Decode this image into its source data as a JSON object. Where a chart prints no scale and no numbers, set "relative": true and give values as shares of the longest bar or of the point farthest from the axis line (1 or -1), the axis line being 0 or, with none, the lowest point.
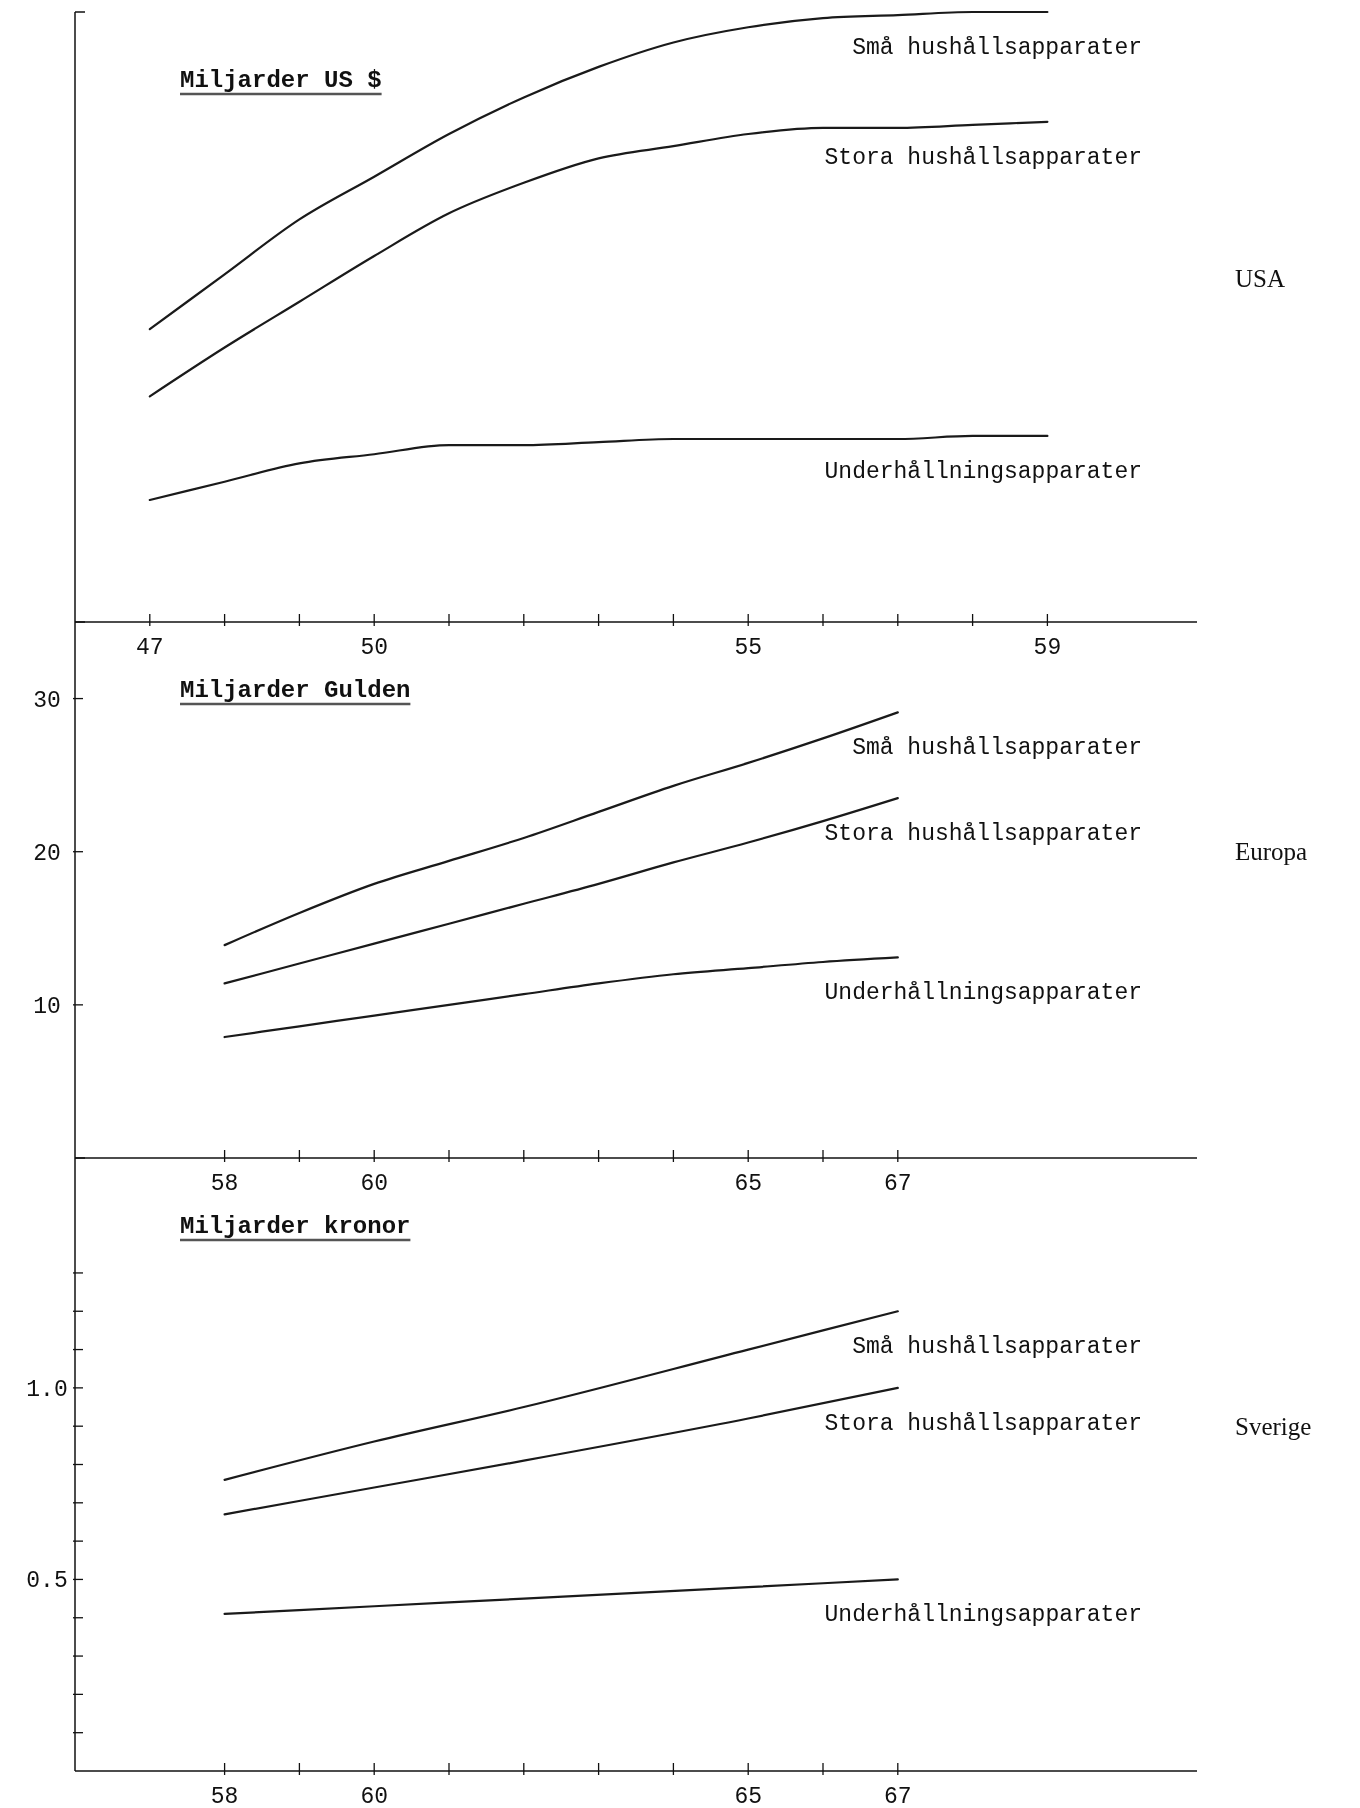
{
  "chart_data": [
    {
      "type": "line",
      "annotations": [
        "USA"
      ],
      "ylabel": "Miljarder US $",
      "relative": true,
      "x": [
        47,
        48,
        49,
        50,
        51,
        52,
        53,
        54,
        55,
        56,
        57,
        58,
        59
      ],
      "xlim": [
        46,
        61
      ],
      "xticks": [
        47,
        {
          "value": 48,
          "label": null
        },
        {
          "value": 49,
          "label": null
        },
        50,
        {
          "value": 51,
          "label": null
        },
        {
          "value": 52,
          "label": null
        },
        {
          "value": 53,
          "label": null
        },
        {
          "value": 54,
          "label": null
        },
        55,
        {
          "value": 56,
          "label": null
        },
        {
          "value": 57,
          "label": null
        },
        {
          "value": 58,
          "label": null
        },
        59
      ],
      "series": [
        {
          "name": "Små hushållsapparater",
          "color": "#1a1a1a",
          "values": [
            0.48,
            0.57,
            0.66,
            0.73,
            0.8,
            0.86,
            0.91,
            0.95,
            0.975,
            0.99,
            0.995,
            1,
            1
          ]
        },
        {
          "name": "Stora hushållsapparater",
          "color": "#1a1a1a",
          "values": [
            0.37,
            0.45,
            0.525,
            0.6,
            0.67,
            0.72,
            0.76,
            0.78,
            0.8,
            0.81,
            0.81,
            0.815,
            0.82
          ]
        },
        {
          "name": "Underhållningsapparater",
          "color": "#1a1a1a",
          "values": [
            0.2,
            0.23,
            0.26,
            0.275,
            0.29,
            0.29,
            0.295,
            0.3,
            0.3,
            0.3,
            0.3,
            0.305,
            0.305
          ]
        }
      ]
    },
    {
      "type": "line",
      "annotations": [
        "Europa"
      ],
      "ylabel": "Miljarder Gulden",
      "x": [
        58,
        59,
        60,
        61,
        62,
        63,
        64,
        65,
        66,
        67
      ],
      "xlim": [
        56,
        71
      ],
      "xticks": [
        58,
        {
          "value": 59,
          "label": null
        },
        60,
        {
          "value": 61,
          "label": null
        },
        {
          "value": 62,
          "label": null
        },
        {
          "value": 63,
          "label": null
        },
        {
          "value": 64,
          "label": null
        },
        65,
        {
          "value": 66,
          "label": null
        },
        67
      ],
      "ylim": [
        0,
        35
      ],
      "yticks": [
        10,
        20,
        30
      ],
      "series": [
        {
          "name": "Små hushållsapparater",
          "color": "#1a1a1a",
          "values": [
            13.9,
            16.0,
            17.9,
            19.4,
            20.9,
            22.6,
            24.3,
            25.8,
            27.4,
            29.1
          ]
        },
        {
          "name": "Stora hushållsapparater",
          "color": "#1a1a1a",
          "values": [
            11.4,
            12.7,
            14.0,
            15.3,
            16.6,
            17.9,
            19.3,
            20.6,
            22.0,
            23.5
          ]
        },
        {
          "name": "Underhållningsapparater",
          "color": "#1a1a1a",
          "values": [
            7.9,
            8.6,
            9.3,
            10.0,
            10.7,
            11.4,
            12.0,
            12.4,
            12.8,
            13.1
          ]
        }
      ]
    },
    {
      "type": "line",
      "annotations": [
        "Sverige"
      ],
      "ylabel": "Miljarder kronor",
      "x": [
        58,
        60,
        62,
        65,
        67
      ],
      "xlim": [
        56,
        71
      ],
      "xticks": [
        58,
        {
          "value": 59,
          "label": null
        },
        60,
        {
          "value": 61,
          "label": null
        },
        {
          "value": 62,
          "label": null
        },
        {
          "value": 63,
          "label": null
        },
        {
          "value": 64,
          "label": null
        },
        65,
        {
          "value": 66,
          "label": null
        },
        67
      ],
      "ylim": [
        0,
        1.6
      ],
      "yticks": [
        {
          "value": 0.1,
          "label": null
        },
        {
          "value": 0.2,
          "label": null
        },
        {
          "value": 0.3,
          "label": null
        },
        {
          "value": 0.4,
          "label": null
        },
        {
          "value": 0.5,
          "label": "0.5"
        },
        {
          "value": 0.6,
          "label": null
        },
        {
          "value": 0.7,
          "label": null
        },
        {
          "value": 0.8,
          "label": null
        },
        {
          "value": 0.9,
          "label": null
        },
        {
          "value": 1,
          "label": "1.0"
        },
        {
          "value": 1.1,
          "label": null
        },
        {
          "value": 1.2,
          "label": null
        },
        {
          "value": 1.3,
          "label": null
        }
      ],
      "series": [
        {
          "name": "Små hushållsapparater",
          "color": "#1a1a1a",
          "values": [
            0.76,
            0.86,
            0.95,
            1.1,
            1.2
          ]
        },
        {
          "name": "Stora hushållsapparater",
          "color": "#1a1a1a",
          "values": [
            0.67,
            0.74,
            0.81,
            0.92,
            1.0
          ]
        },
        {
          "name": "Underhållningsapparater",
          "color": "#1a1a1a",
          "values": [
            0.41,
            0.43,
            0.45,
            0.48,
            0.5
          ]
        }
      ]
    }
  ]
}
